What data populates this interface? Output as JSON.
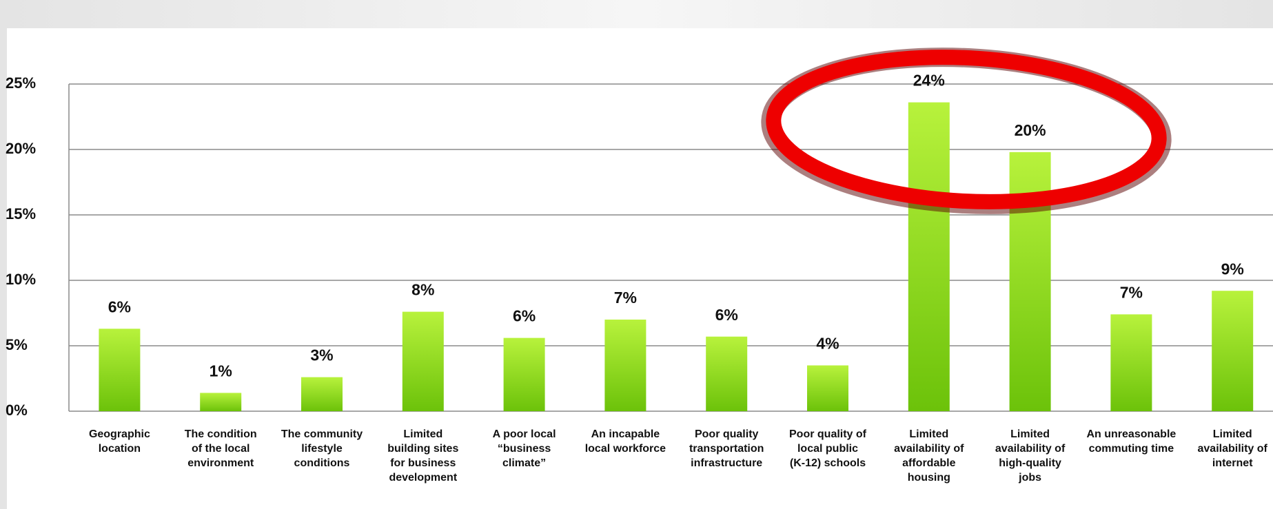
{
  "chart_data": {
    "type": "bar",
    "categories": [
      "Geographic location",
      "The condition of the local environment",
      "The community lifestyle conditions",
      "Limited building sites for business development",
      "A poor local “business climate”",
      "An incapable local workforce",
      "Poor quality transportation infrastructure",
      "Poor quality of local public (K-12) schools",
      "Limited availability of affordable housing",
      "Limited availability of high-quality jobs",
      "An unreasonable commuting time",
      "Limited availability of internet"
    ],
    "values": [
      6.3,
      1.4,
      2.6,
      7.6,
      5.6,
      7.0,
      5.7,
      3.5,
      23.6,
      19.8,
      7.4,
      9.2
    ],
    "value_labels": [
      "6%",
      "1%",
      "3%",
      "8%",
      "6%",
      "7%",
      "6%",
      "4%",
      "24%",
      "20%",
      "7%",
      "9%"
    ],
    "color": "#8fd61a",
    "ylim": [
      0,
      25
    ],
    "yticks": [
      {
        "value": 0,
        "label": "0%"
      },
      {
        "value": 5,
        "label": "5%"
      },
      {
        "value": 10,
        "label": "10%"
      },
      {
        "value": 15,
        "label": "15%"
      },
      {
        "value": 20,
        "label": "20%"
      },
      {
        "value": 25,
        "label": "25%"
      }
    ],
    "grid": true
  }
}
